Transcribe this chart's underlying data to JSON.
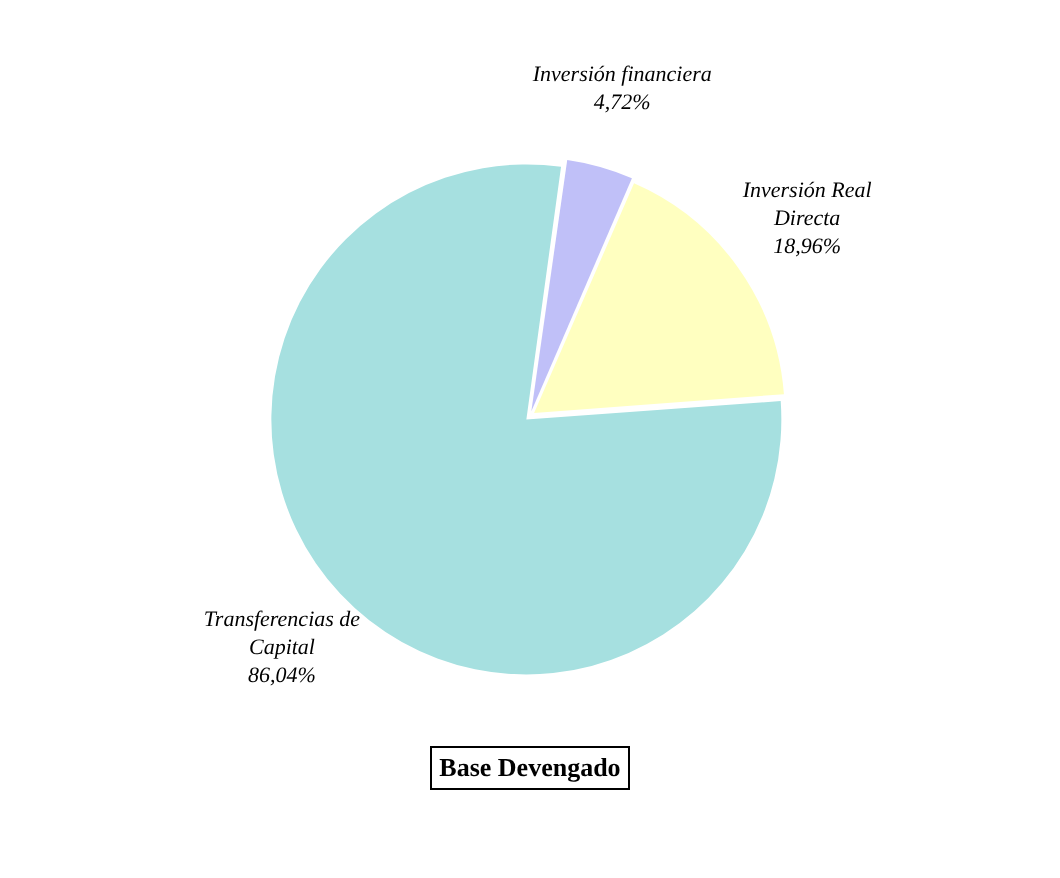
{
  "chart_data": {
    "type": "pie",
    "title": "Base Devengado",
    "categories": [
      "Inversión financiera",
      "Inversión Real Directa",
      "Transferencias de Capital"
    ],
    "values": [
      4.72,
      18.96,
      86.04
    ],
    "value_labels": [
      "4,72%",
      "18,96%",
      "86,04%"
    ],
    "colors": [
      "#c0c0f8",
      "#ffffc0",
      "#a6e0e0"
    ],
    "legend": false
  }
}
